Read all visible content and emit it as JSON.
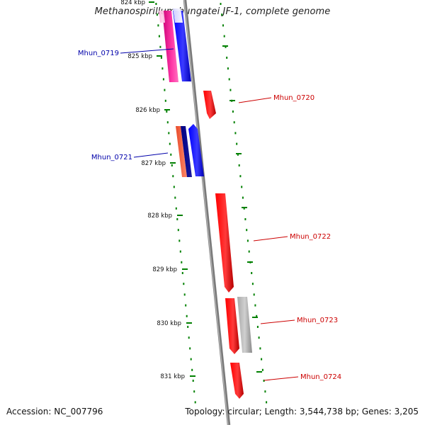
{
  "title": "Methanospirillum hungatei JF-1, complete genome",
  "footer": {
    "accession": "Accession: NC_007796",
    "summary": "Topology: circular; Length: 3,544,738 bp; Genes: 3,205"
  },
  "colors": {
    "forward_strand": "#0000ff",
    "reverse_strand": "#ff0000",
    "backbone": "#808080",
    "ticks": "#008000"
  },
  "ticks": [
    {
      "kbp": 824,
      "label": "824 kbp"
    },
    {
      "kbp": 825,
      "label": "825 kbp"
    },
    {
      "kbp": 826,
      "label": "826 kbp"
    },
    {
      "kbp": 827,
      "label": "827 kbp"
    },
    {
      "kbp": 828,
      "label": "828 kbp"
    },
    {
      "kbp": 829,
      "label": "829 kbp"
    },
    {
      "kbp": 830,
      "label": "830 kbp"
    },
    {
      "kbp": 831,
      "label": "831 kbp"
    }
  ],
  "genes": [
    {
      "name": "Mhun_0719",
      "label": "Mhun_0719"
    },
    {
      "name": "Mhun_0720",
      "label": "Mhun_0720"
    },
    {
      "name": "Mhun_0721",
      "label": "Mhun_0721"
    },
    {
      "name": "Mhun_0722",
      "label": "Mhun_0722"
    },
    {
      "name": "Mhun_0723",
      "label": "Mhun_0723"
    },
    {
      "name": "Mhun_0724",
      "label": "Mhun_0724"
    }
  ]
}
